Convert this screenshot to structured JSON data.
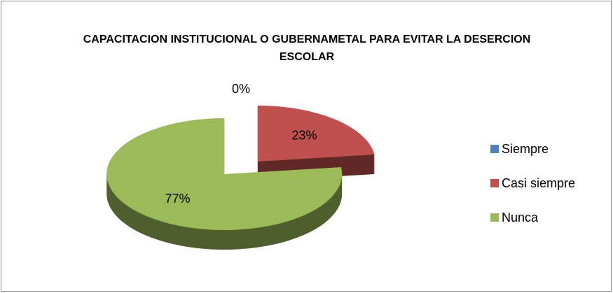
{
  "chart_data": {
    "type": "pie",
    "title": "CAPACITACION INSTITUCIONAL O GUBERNAMETAL PARA EVITAR LA DESERCION ESCOLAR",
    "categories": [
      "Siempre",
      "Casi siempre",
      "Nunca"
    ],
    "values": [
      0,
      23,
      77
    ],
    "value_labels": [
      "0%",
      "23%",
      "77%"
    ],
    "colors": [
      "#4f81bd",
      "#c0504d",
      "#9bbb59"
    ],
    "legend": "right"
  }
}
